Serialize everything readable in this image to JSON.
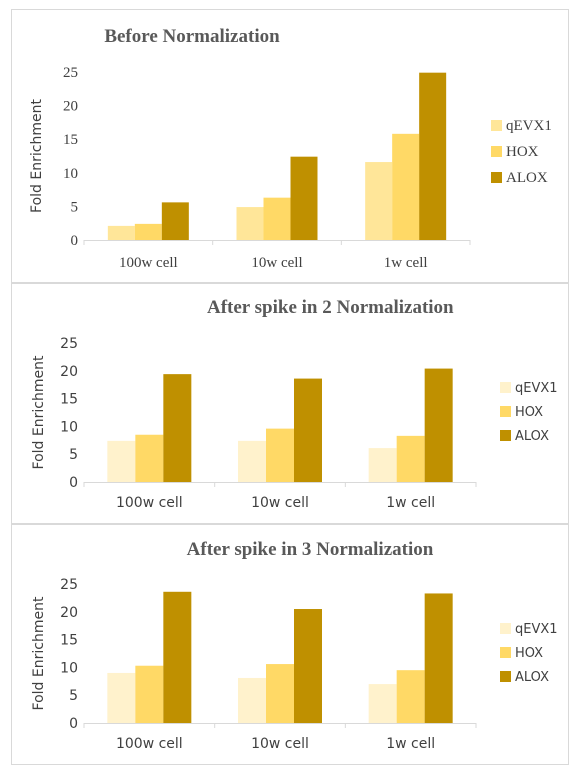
{
  "colors": {
    "qEVX1": "#ffe699",
    "HOX": "#ffd966",
    "ALOX": "#bf9000",
    "axis": "#d9d9d9",
    "text": "#404040"
  },
  "chart_data": [
    {
      "type": "bar",
      "title": "Before Normalization",
      "ylabel": "Fold Enrichment",
      "xlabel": "",
      "categories": [
        "100w cell",
        "10w cell",
        "1w cell"
      ],
      "ylim": [
        0,
        25
      ],
      "yticks": [
        "0",
        "5",
        "10",
        "15",
        "20",
        "25"
      ],
      "grid": false,
      "legend": "right",
      "series": [
        {
          "name": "qEVX1",
          "values": [
            2.1,
            4.9,
            11.6
          ]
        },
        {
          "name": "HOX",
          "values": [
            2.4,
            6.3,
            15.8
          ]
        },
        {
          "name": "ALOX",
          "values": [
            5.6,
            12.4,
            24.9
          ]
        }
      ]
    },
    {
      "type": "bar",
      "title": "After spike in 2 Normalization",
      "ylabel": "Fold Enrichment",
      "xlabel": "",
      "categories": [
        "100w cell",
        "10w cell",
        "1w cell"
      ],
      "ylim": [
        0,
        25
      ],
      "yticks": [
        "0",
        "5",
        "10",
        "15",
        "20",
        "25"
      ],
      "grid": false,
      "legend": "right",
      "series": [
        {
          "name": "qEVX1",
          "values": [
            7.4,
            7.4,
            6.1
          ]
        },
        {
          "name": "HOX",
          "values": [
            8.5,
            9.6,
            8.3
          ]
        },
        {
          "name": "ALOX",
          "values": [
            19.4,
            18.6,
            20.4
          ]
        }
      ]
    },
    {
      "type": "bar",
      "title": "After spike in 3 Normalization",
      "ylabel": "Fold Enrichment",
      "xlabel": "",
      "categories": [
        "100w cell",
        "10w cell",
        "1w cell"
      ],
      "ylim": [
        0,
        25
      ],
      "yticks": [
        "0",
        "5",
        "10",
        "15",
        "20",
        "25"
      ],
      "grid": false,
      "legend": "right",
      "series": [
        {
          "name": "qEVX1",
          "values": [
            9.0,
            8.1,
            7.0
          ]
        },
        {
          "name": "HOX",
          "values": [
            10.3,
            10.6,
            9.5
          ]
        },
        {
          "name": "ALOX",
          "values": [
            23.6,
            20.5,
            23.3
          ]
        }
      ]
    }
  ]
}
